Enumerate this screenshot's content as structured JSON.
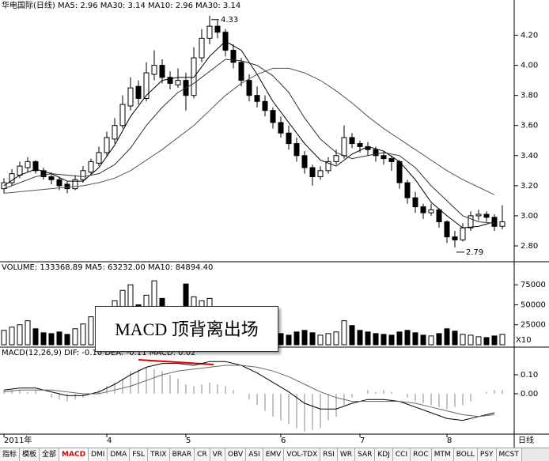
{
  "chart_data": [
    {
      "type": "candlestick",
      "title": "华电国际(日线)  MA5: 2.96  MA30: 3.14  MA10: 2.96  MA30: 3.14",
      "categories": [
        "2011年",
        null,
        null,
        null,
        null,
        null,
        null,
        null,
        null,
        null,
        null,
        null,
        null,
        "4",
        null,
        null,
        null,
        null,
        null,
        null,
        null,
        null,
        null,
        "5",
        null,
        null,
        null,
        null,
        null,
        null,
        null,
        null,
        null,
        null,
        null,
        "6",
        null,
        null,
        null,
        null,
        null,
        null,
        null,
        null,
        null,
        "7",
        null,
        null,
        null,
        null,
        null,
        null,
        null,
        null,
        null,
        null,
        "8",
        null,
        null,
        null,
        null,
        null,
        null,
        null
      ],
      "candles": [
        [
          3.18,
          3.25,
          3.15,
          3.22
        ],
        [
          3.22,
          3.31,
          3.2,
          3.28
        ],
        [
          3.27,
          3.36,
          3.25,
          3.33
        ],
        [
          3.32,
          3.39,
          3.29,
          3.36
        ],
        [
          3.36,
          3.37,
          3.28,
          3.3
        ],
        [
          3.3,
          3.32,
          3.24,
          3.26
        ],
        [
          3.26,
          3.29,
          3.21,
          3.24
        ],
        [
          3.24,
          3.26,
          3.17,
          3.2
        ],
        [
          3.21,
          3.23,
          3.15,
          3.18
        ],
        [
          3.18,
          3.27,
          3.17,
          3.24
        ],
        [
          3.24,
          3.33,
          3.22,
          3.3
        ],
        [
          3.29,
          3.38,
          3.27,
          3.36
        ],
        [
          3.35,
          3.46,
          3.33,
          3.42
        ],
        [
          3.42,
          3.56,
          3.4,
          3.52
        ],
        [
          3.51,
          3.65,
          3.48,
          3.6
        ],
        [
          3.6,
          3.8,
          3.58,
          3.74
        ],
        [
          3.73,
          3.92,
          3.7,
          3.85
        ],
        [
          3.86,
          3.9,
          3.74,
          3.78
        ],
        [
          3.78,
          4.02,
          3.76,
          3.95
        ],
        [
          3.94,
          4.1,
          3.9,
          4.0
        ],
        [
          4.0,
          4.04,
          3.88,
          3.92
        ],
        [
          3.92,
          3.96,
          3.84,
          3.88
        ],
        [
          3.87,
          3.98,
          3.85,
          3.9
        ],
        [
          3.9,
          3.95,
          3.7,
          3.8
        ],
        [
          3.8,
          4.12,
          3.78,
          4.05
        ],
        [
          4.05,
          4.24,
          4.02,
          4.18
        ],
        [
          4.18,
          4.33,
          4.14,
          4.26
        ],
        [
          4.26,
          4.3,
          4.18,
          4.22
        ],
        [
          4.22,
          4.24,
          4.06,
          4.1
        ],
        [
          4.1,
          4.14,
          3.98,
          4.02
        ],
        [
          4.02,
          4.05,
          3.86,
          3.9
        ],
        [
          3.9,
          3.94,
          3.76,
          3.8
        ],
        [
          3.8,
          3.86,
          3.72,
          3.76
        ],
        [
          3.76,
          3.8,
          3.66,
          3.7
        ],
        [
          3.7,
          3.72,
          3.58,
          3.62
        ],
        [
          3.62,
          3.66,
          3.52,
          3.55
        ],
        [
          3.55,
          3.6,
          3.44,
          3.48
        ],
        [
          3.48,
          3.52,
          3.36,
          3.4
        ],
        [
          3.4,
          3.43,
          3.28,
          3.32
        ],
        [
          3.32,
          3.34,
          3.2,
          3.26
        ],
        [
          3.26,
          3.33,
          3.24,
          3.3
        ],
        [
          3.3,
          3.39,
          3.28,
          3.36
        ],
        [
          3.36,
          3.44,
          3.34,
          3.4
        ],
        [
          3.4,
          3.6,
          3.38,
          3.52
        ],
        [
          3.52,
          3.55,
          3.45,
          3.48
        ],
        [
          3.48,
          3.5,
          3.42,
          3.46
        ],
        [
          3.46,
          3.49,
          3.4,
          3.44
        ],
        [
          3.44,
          3.46,
          3.36,
          3.4
        ],
        [
          3.4,
          3.43,
          3.34,
          3.38
        ],
        [
          3.38,
          3.4,
          3.3,
          3.36
        ],
        [
          3.36,
          3.37,
          3.18,
          3.22
        ],
        [
          3.22,
          3.24,
          3.08,
          3.12
        ],
        [
          3.12,
          3.16,
          3.02,
          3.06
        ],
        [
          3.06,
          3.08,
          2.98,
          3.02
        ],
        [
          3.02,
          3.08,
          3.0,
          3.04
        ],
        [
          3.04,
          3.05,
          2.92,
          2.96
        ],
        [
          2.96,
          2.97,
          2.82,
          2.86
        ],
        [
          2.86,
          2.9,
          2.79,
          2.84
        ],
        [
          2.84,
          2.95,
          2.83,
          2.92
        ],
        [
          2.92,
          3.03,
          2.9,
          3.0
        ],
        [
          3.0,
          3.04,
          2.97,
          3.01
        ],
        [
          3.01,
          3.03,
          2.96,
          2.99
        ],
        [
          2.99,
          3.01,
          2.9,
          2.93
        ],
        [
          2.93,
          3.07,
          2.91,
          2.96
        ]
      ],
      "up_fill": "#ffffff",
      "down_fill": "#000000",
      "stroke": "#000000",
      "lines": {
        "x": [
          0,
          2,
          4,
          6,
          8,
          10,
          12,
          14,
          16,
          18,
          20,
          22,
          24,
          26,
          28,
          30,
          32,
          34,
          36,
          38,
          40,
          42,
          44,
          46,
          48,
          50,
          52,
          54,
          56,
          58,
          60,
          62
        ],
        "series": [
          {
            "color": "#000000",
            "values": [
              3.2,
              3.27,
              3.31,
              3.28,
              3.23,
              3.23,
              3.32,
              3.47,
              3.66,
              3.8,
              3.9,
              3.92,
              3.92,
              4.06,
              4.16,
              4.1,
              3.94,
              3.76,
              3.62,
              3.48,
              3.37,
              3.33,
              3.41,
              3.46,
              3.43,
              3.36,
              3.24,
              3.09,
              3.0,
              2.92,
              2.93,
              2.96
            ]
          },
          {
            "color": "#333333",
            "values": [
              3.18,
              3.22,
              3.26,
              3.28,
              3.27,
              3.26,
              3.28,
              3.34,
              3.45,
              3.6,
              3.72,
              3.82,
              3.88,
              3.96,
              4.04,
              4.03,
              4.0,
              3.93,
              3.82,
              3.65,
              3.51,
              3.42,
              3.38,
              3.4,
              3.42,
              3.4,
              3.32,
              3.2,
              3.1,
              3.0,
              2.96,
              2.95
            ]
          },
          {
            "color": "#555555",
            "values": [
              3.15,
              3.16,
              3.17,
              3.18,
              3.19,
              3.2,
              3.22,
              3.25,
              3.3,
              3.37,
              3.44,
              3.52,
              3.6,
              3.7,
              3.8,
              3.88,
              3.94,
              3.98,
              3.98,
              3.95,
              3.9,
              3.83,
              3.75,
              3.66,
              3.58,
              3.51,
              3.44,
              3.37,
              3.3,
              3.24,
              3.19,
              3.14
            ]
          }
        ]
      },
      "ylim": [
        2.7,
        4.35
      ],
      "yticks": [
        {
          "value": 2.8,
          "label": "2.80"
        },
        {
          "value": 3.0,
          "label": "3.00"
        },
        {
          "value": 3.2,
          "label": "3.20"
        },
        {
          "value": 3.4,
          "label": "3.40"
        },
        {
          "value": 3.6,
          "label": "3.60"
        },
        {
          "value": 3.8,
          "label": "3.80"
        },
        {
          "value": 4.0,
          "label": "4.00"
        },
        {
          "value": 4.2,
          "label": "4.20"
        }
      ],
      "annotations": [
        {
          "text": "4.33",
          "value": 4.33
        },
        {
          "text": "2.79",
          "value": 2.79
        }
      ]
    },
    {
      "type": "bar",
      "title": "VOLUME: 133368.89  MA5: 63232.00  MA10: 84894.40",
      "values": [
        18000,
        22000,
        25000,
        30000,
        20000,
        15000,
        14000,
        16000,
        13000,
        20000,
        26000,
        35000,
        42000,
        48000,
        55000,
        68000,
        75000,
        50000,
        62000,
        80000,
        58000,
        45000,
        40000,
        76000,
        60000,
        55000,
        58000,
        42000,
        40000,
        30000,
        28000,
        26000,
        22000,
        18000,
        15000,
        14000,
        12000,
        16000,
        18000,
        15000,
        12000,
        14000,
        16000,
        30000,
        24000,
        18000,
        16000,
        14000,
        13000,
        12000,
        16000,
        18000,
        15000,
        12000,
        11000,
        14000,
        20000,
        17000,
        13000,
        12000,
        10000,
        9000,
        11000,
        13000
      ],
      "ylim": [
        0,
        90000
      ],
      "yticks": [
        25000,
        50000,
        75000
      ],
      "unit_label": "X10"
    },
    {
      "type": "macd",
      "title": "MACD(12,26,9)  DIF: -0.10  DEA: -0.11  MACD: 0.02",
      "histogram": [
        0.02,
        0.02,
        0.02,
        0.01,
        0.02,
        0.0,
        -0.02,
        -0.03,
        -0.04,
        -0.03,
        -0.02,
        0.0,
        0.02,
        0.04,
        0.06,
        0.08,
        0.12,
        0.13,
        0.14,
        0.13,
        0.12,
        0.1,
        0.08,
        0.05,
        0.04,
        0.05,
        0.06,
        0.05,
        0.04,
        0.02,
        0.0,
        -0.03,
        -0.06,
        -0.09,
        -0.12,
        -0.14,
        -0.16,
        -0.18,
        -0.2,
        -0.19,
        -0.18,
        -0.14,
        -0.12,
        -0.06,
        -0.02,
        0.0,
        0.02,
        0.01,
        0.02,
        0.01,
        0.0,
        -0.02,
        -0.04,
        -0.05,
        -0.06,
        -0.07,
        -0.08,
        -0.07,
        -0.06,
        -0.04,
        0.0,
        0.01,
        0.02,
        0.02
      ],
      "bar_color": "#888888",
      "lines": {
        "x": [
          0,
          2,
          4,
          6,
          8,
          10,
          12,
          14,
          16,
          18,
          20,
          22,
          24,
          26,
          28,
          30,
          32,
          34,
          36,
          38,
          40,
          42,
          44,
          46,
          48,
          50,
          52,
          54,
          56,
          58,
          60,
          62
        ],
        "series": [
          {
            "color": "#000000",
            "values": [
              0.02,
              0.03,
              0.03,
              0.01,
              -0.01,
              -0.01,
              0.01,
              0.05,
              0.1,
              0.14,
              0.16,
              0.16,
              0.15,
              0.17,
              0.17,
              0.15,
              0.11,
              0.06,
              0.01,
              -0.05,
              -0.08,
              -0.08,
              -0.05,
              -0.03,
              -0.03,
              -0.04,
              -0.07,
              -0.1,
              -0.13,
              -0.14,
              -0.12,
              -0.1
            ]
          },
          {
            "color": "#666666",
            "values": [
              0.01,
              0.02,
              0.02,
              0.02,
              0.01,
              0.0,
              0.0,
              0.02,
              0.04,
              0.07,
              0.1,
              0.12,
              0.13,
              0.14,
              0.15,
              0.15,
              0.14,
              0.12,
              0.09,
              0.05,
              0.01,
              -0.02,
              -0.04,
              -0.04,
              -0.04,
              -0.04,
              -0.05,
              -0.07,
              -0.09,
              -0.11,
              -0.12,
              -0.11
            ]
          }
        ]
      },
      "ylim": [
        -0.2,
        0.2
      ],
      "yticks": [
        {
          "value": 0.0,
          "label": "0.00"
        },
        {
          "value": 0.1,
          "label": "0.10"
        }
      ]
    }
  ],
  "period_label": "日线",
  "callout": "MACD 顶背离出场",
  "tabs": [
    "指标",
    "模板",
    "全部",
    "MACD",
    "DMI",
    "DMA",
    "FSL",
    "TRIX",
    "BRAR",
    "CR",
    "VR",
    "OBV",
    "ASI",
    "EMV",
    "VOL-TDX",
    "RSI",
    "WR",
    "SAR",
    "KDJ",
    "CCI",
    "ROC",
    "MTM",
    "BOLL",
    "PSY",
    "MCST"
  ]
}
